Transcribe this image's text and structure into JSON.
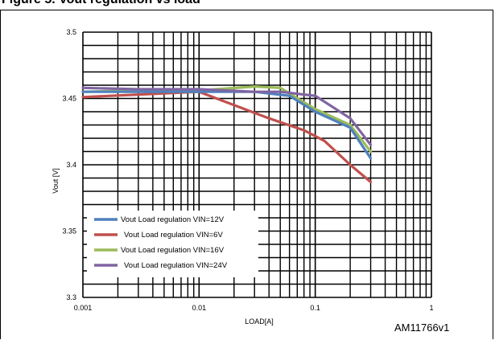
{
  "header": {
    "title": "Figure 5. Vout regulation vs load"
  },
  "footer": {
    "reference": "AM11766v1"
  },
  "chart_data": {
    "type": "line",
    "title": "",
    "xlabel": "LOAD[A]",
    "ylabel": "Vout [V]",
    "xscale": "log",
    "xlim": [
      0.001,
      1
    ],
    "ylim": [
      3.3,
      3.5
    ],
    "x_ticks": [
      "0.001",
      "0.01",
      "0.1",
      "1"
    ],
    "y_ticks": [
      "3.3",
      "3.35",
      "3.4",
      "3.45",
      "3.5"
    ],
    "grid": true,
    "legend_position": "bottom-left",
    "series": [
      {
        "name": "Vout Load regulation VIN=12V",
        "color": "#4f81bd",
        "x": [
          0.001,
          0.003,
          0.01,
          0.03,
          0.06,
          0.1,
          0.2,
          0.3
        ],
        "y": [
          3.455,
          3.455,
          3.455,
          3.455,
          3.452,
          3.44,
          3.428,
          3.405
        ]
      },
      {
        "name": "Vout Load regulation VIN=6V",
        "color": "#c0504d",
        "x": [
          0.001,
          0.003,
          0.01,
          0.02,
          0.04,
          0.08,
          0.12,
          0.2,
          0.3
        ],
        "y": [
          3.451,
          3.453,
          3.455,
          3.445,
          3.435,
          3.426,
          3.418,
          3.4,
          3.387
        ]
      },
      {
        "name": "Vout Load regulation VIN=16V",
        "color": "#9bbb59",
        "x": [
          0.001,
          0.003,
          0.01,
          0.03,
          0.05,
          0.08,
          0.1,
          0.2,
          0.3
        ],
        "y": [
          3.455,
          3.456,
          3.456,
          3.459,
          3.458,
          3.447,
          3.442,
          3.43,
          3.41
        ]
      },
      {
        "name": "Vout Load regulation VIN=24V",
        "color": "#8064a2",
        "x": [
          0.001,
          0.003,
          0.01,
          0.03,
          0.05,
          0.1,
          0.2,
          0.3
        ],
        "y": [
          3.458,
          3.457,
          3.457,
          3.455,
          3.455,
          3.452,
          3.435,
          3.415
        ]
      }
    ]
  }
}
